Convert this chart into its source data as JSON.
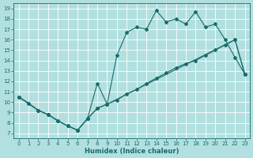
{
  "xlabel": "Humidex (Indice chaleur)",
  "xlim": [
    -0.5,
    23.5
  ],
  "ylim": [
    6.5,
    19.5
  ],
  "xticks": [
    0,
    1,
    2,
    3,
    4,
    5,
    6,
    7,
    8,
    9,
    10,
    11,
    12,
    13,
    14,
    15,
    16,
    17,
    18,
    19,
    20,
    21,
    22,
    23
  ],
  "yticks": [
    7,
    8,
    9,
    10,
    11,
    12,
    13,
    14,
    15,
    16,
    17,
    18,
    19
  ],
  "bg_color": "#b2e0e0",
  "grid_color": "#ffffff",
  "line_color": "#1a6b6b",
  "line1_x": [
    0,
    1,
    2,
    3,
    4,
    5,
    6,
    7,
    8,
    9,
    10,
    11,
    12,
    13,
    14,
    15,
    16,
    17,
    18,
    19,
    20,
    21,
    22,
    23
  ],
  "line1_y": [
    10.5,
    9.9,
    9.2,
    8.8,
    8.2,
    7.7,
    7.3,
    8.4,
    9.4,
    9.8,
    10.2,
    10.8,
    11.2,
    11.8,
    12.3,
    12.8,
    13.3,
    13.7,
    14.0,
    14.5,
    15.0,
    15.5,
    16.0,
    12.7
  ],
  "line2_x": [
    0,
    1,
    2,
    3,
    4,
    5,
    6,
    7,
    8,
    9,
    10,
    11,
    12,
    13,
    14,
    15,
    16,
    17,
    18,
    19,
    20,
    21,
    22,
    23
  ],
  "line2_y": [
    10.5,
    9.9,
    9.2,
    8.8,
    8.2,
    7.7,
    7.3,
    8.4,
    9.4,
    9.8,
    14.5,
    16.7,
    17.2,
    17.0,
    18.8,
    17.7,
    18.0,
    17.5,
    18.7,
    17.2,
    17.5,
    16.0,
    14.3,
    12.7
  ],
  "line3_x": [
    0,
    2,
    3,
    4,
    5,
    6,
    7,
    8,
    9,
    22,
    23
  ],
  "line3_y": [
    10.5,
    9.2,
    8.8,
    8.2,
    7.7,
    7.3,
    8.4,
    11.8,
    9.8,
    16.0,
    12.7
  ]
}
